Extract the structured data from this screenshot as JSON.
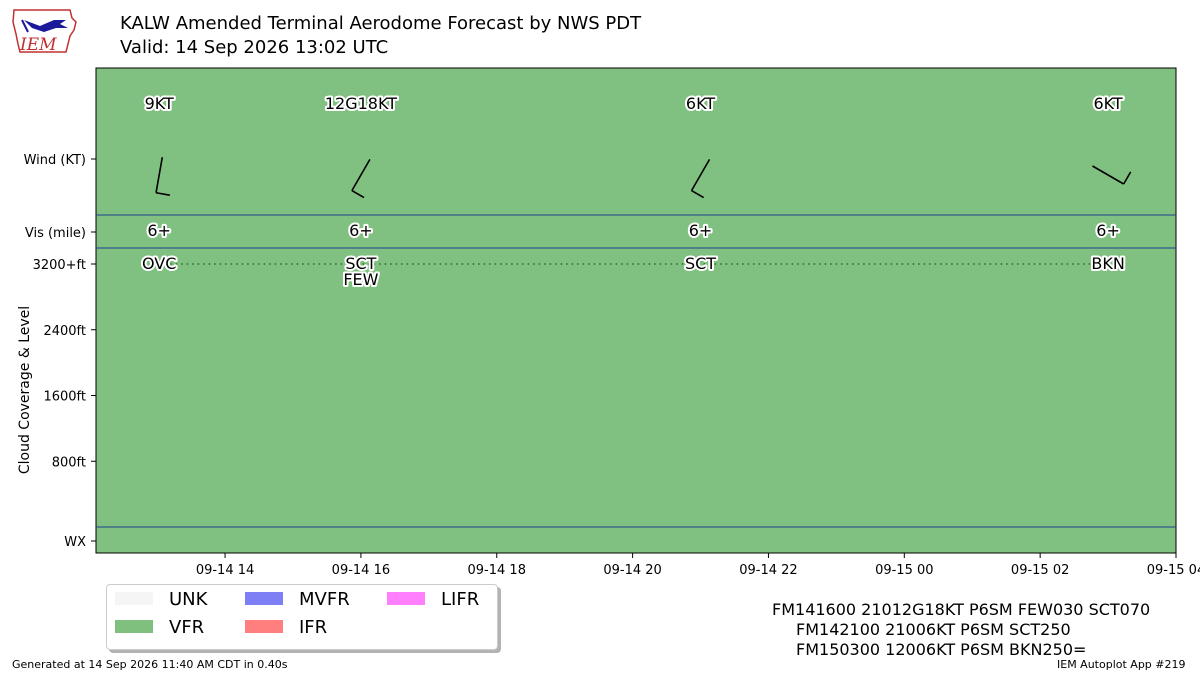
{
  "header": {
    "title": "KALW Amended Terminal Aerodome Forecast by NWS PDT",
    "subtitle": "Valid: 14 Sep 2026 13:02 UTC",
    "logo_text": "IEM"
  },
  "chart_data": {
    "type": "timeline",
    "background_category": "VFR",
    "x_range_hours": [
      12.1,
      28.0
    ],
    "x_ticks": [
      {
        "hour": 14,
        "label": "09-14 14"
      },
      {
        "hour": 16,
        "label": "09-14 16"
      },
      {
        "hour": 18,
        "label": "09-14 18"
      },
      {
        "hour": 20,
        "label": "09-14 20"
      },
      {
        "hour": 22,
        "label": "09-14 22"
      },
      {
        "hour": 24,
        "label": "09-15 00"
      },
      {
        "hour": 26,
        "label": "09-15 02"
      },
      {
        "hour": 28,
        "label": "09-15 04"
      }
    ],
    "ylabel": "Cloud Coverage & Level",
    "y_rows": [
      {
        "key": "wind",
        "label": "Wind (KT)"
      },
      {
        "key": "vis",
        "label": "Vis (mile)"
      },
      {
        "key": "wx",
        "label": "WX"
      }
    ],
    "cloud_range_ft": [
      0,
      3200
    ],
    "cloud_ticks": [
      {
        "value": 3200,
        "label": "3200+ft"
      },
      {
        "value": 2400,
        "label": "2400ft"
      },
      {
        "value": 1600,
        "label": "1600ft"
      },
      {
        "value": 800,
        "label": "800ft"
      }
    ],
    "forecasts": [
      {
        "hour": 13.03,
        "wind_dir": 190,
        "wind_label": "9KT",
        "vis": "6+",
        "clouds": [
          {
            "cover": "OVC",
            "level_ft": 3200
          }
        ]
      },
      {
        "hour": 16.0,
        "wind_dir": 210,
        "wind_label": "12G18KT",
        "vis": "6+",
        "clouds": [
          {
            "cover": "SCT",
            "level_ft": 3200
          },
          {
            "cover": "FEW",
            "level_ft": 3200
          }
        ]
      },
      {
        "hour": 21.0,
        "wind_dir": 210,
        "wind_label": "6KT",
        "vis": "6+",
        "clouds": [
          {
            "cover": "SCT",
            "level_ft": 3200
          }
        ]
      },
      {
        "hour": 27.0,
        "wind_dir": 120,
        "wind_label": "6KT",
        "vis": "6+",
        "clouds": [
          {
            "cover": "BKN",
            "level_ft": 3200
          }
        ]
      }
    ],
    "legend": [
      {
        "label": "UNK",
        "color": "#f5f5f5"
      },
      {
        "label": "MVFR",
        "color": "#7f7ff5"
      },
      {
        "label": "LIFR",
        "color": "#ff7fff"
      },
      {
        "label": "VFR",
        "color": "#7fc07f"
      },
      {
        "label": "IFR",
        "color": "#ff7f7f"
      }
    ],
    "legend_placement": "bottom-left",
    "colors": {
      "vfr": "#80c080",
      "row_divider": "#1f3f8f",
      "dotted_line": "#2a6a2a"
    }
  },
  "taf_text": [
    "FM141600 21012G18KT P6SM FEW030 SCT070",
    "FM142100 21006KT P6SM SCT250",
    "FM150300 12006KT P6SM BKN250="
  ],
  "footer": {
    "generated": "Generated at 14 Sep 2026 11:40 AM CDT in 0.40s",
    "app": "IEM Autoplot App #219"
  }
}
